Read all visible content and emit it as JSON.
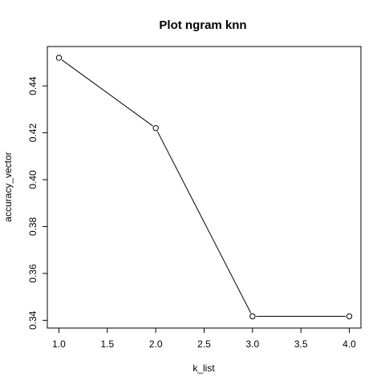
{
  "chart_data": {
    "type": "line",
    "title": "Plot ngram knn",
    "xlabel": "k_list",
    "ylabel": "accuracy_vector",
    "x": [
      1,
      2,
      3,
      4
    ],
    "series": [
      {
        "values": [
          0.452,
          0.422,
          0.3417,
          0.3417
        ]
      }
    ],
    "xlim": [
      0.88,
      4.12
    ],
    "ylim": [
      0.3367,
      0.4568
    ],
    "xticks": [
      "1.0",
      "1.5",
      "2.0",
      "2.5",
      "3.0",
      "3.5",
      "4.0"
    ],
    "yticks": [
      "0.34",
      "0.36",
      "0.38",
      "0.40",
      "0.42",
      "0.44"
    ],
    "line_color": "#000000",
    "point_style": "open-circle",
    "grid": false,
    "legend": "none"
  }
}
